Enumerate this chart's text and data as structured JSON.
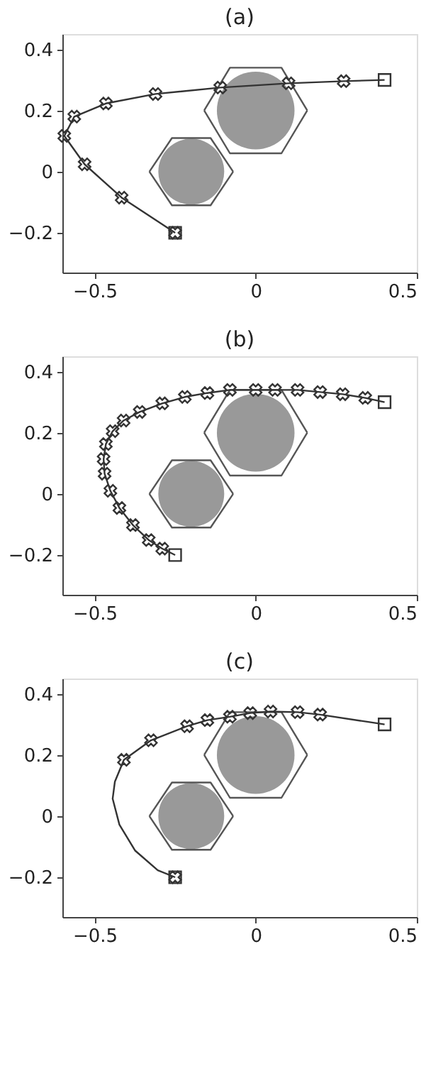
{
  "chart_data": [
    {
      "type": "line",
      "title": "(a)",
      "xlim": [
        -0.6,
        0.5
      ],
      "ylim": [
        -0.33,
        0.45
      ],
      "grid": false,
      "xticks": [
        -0.5,
        0,
        0.5
      ],
      "yticks": [
        -0.2,
        0,
        0.2,
        0.4
      ],
      "series": [
        {
          "type": "bubble",
          "color": "#999999",
          "x": [
            0,
            -0.2
          ],
          "values": [
            0.2,
            0
          ],
          "sizes": [
            1,
            0.72
          ]
        },
        {
          "color": "#555555",
          "marker": "none",
          "x": [
            -0.16,
            -0.08,
            0.08,
            0.16
          ],
          "values": [
            0.2,
            0.34,
            0.34,
            0.2
          ]
        },
        {
          "color": "#555555",
          "marker": "none",
          "x": [
            -0.16,
            -0.08,
            0.08,
            0.16
          ],
          "values": [
            0.2,
            0.06,
            0.06,
            0.2
          ]
        },
        {
          "color": "#555555",
          "marker": "none",
          "x": [
            -0.33,
            -0.26,
            -0.14,
            -0.07
          ],
          "values": [
            0,
            0.11,
            0.11,
            0
          ]
        },
        {
          "color": "#555555",
          "marker": "none",
          "x": [
            -0.33,
            -0.26,
            -0.14,
            -0.07
          ],
          "values": [
            0,
            -0.11,
            -0.11,
            0
          ]
        },
        {
          "color": "#333333",
          "marker": "none",
          "x": [
            0.4,
            0.273,
            0.102,
            -0.11,
            -0.311,
            -0.465,
            -0.563,
            -0.594,
            -0.531,
            -0.416,
            -0.25
          ],
          "values": [
            0.3,
            0.296,
            0.289,
            0.275,
            0.254,
            0.223,
            0.18,
            0.117,
            0.024,
            -0.085,
            -0.2
          ]
        },
        {
          "type": "scatter",
          "color": "#333333",
          "marker": "cross",
          "x": [
            0.273,
            0.102,
            -0.11,
            -0.311,
            -0.465,
            -0.563,
            -0.594,
            -0.531,
            -0.416,
            -0.25
          ],
          "values": [
            0.296,
            0.289,
            0.275,
            0.254,
            0.223,
            0.18,
            0.117,
            0.024,
            -0.085,
            -0.2
          ]
        },
        {
          "type": "scatter",
          "color": "#333333",
          "marker": "square",
          "x": [
            0.4,
            -0.25
          ],
          "values": [
            0.3,
            -0.2
          ]
        }
      ]
    },
    {
      "type": "line",
      "title": "(b)",
      "xlim": [
        -0.6,
        0.5
      ],
      "ylim": [
        -0.33,
        0.45
      ],
      "grid": false,
      "xticks": [
        -0.5,
        0,
        0.5
      ],
      "yticks": [
        -0.2,
        0,
        0.2,
        0.4
      ],
      "series": [
        {
          "type": "bubble",
          "color": "#999999",
          "x": [
            0,
            -0.2
          ],
          "values": [
            0.2,
            0
          ],
          "sizes": [
            1,
            0.72
          ]
        },
        {
          "color": "#555555",
          "marker": "none",
          "x": [
            -0.16,
            -0.08,
            0.08,
            0.16
          ],
          "values": [
            0.2,
            0.34,
            0.34,
            0.2
          ]
        },
        {
          "color": "#555555",
          "marker": "none",
          "x": [
            -0.16,
            -0.08,
            0.08,
            0.16
          ],
          "values": [
            0.2,
            0.06,
            0.06,
            0.2
          ]
        },
        {
          "color": "#555555",
          "marker": "none",
          "x": [
            -0.33,
            -0.26,
            -0.14,
            -0.07
          ],
          "values": [
            0,
            0.11,
            0.11,
            0
          ]
        },
        {
          "color": "#555555",
          "marker": "none",
          "x": [
            -0.33,
            -0.26,
            -0.14,
            -0.07
          ],
          "values": [
            0,
            -0.11,
            -0.11,
            0
          ]
        },
        {
          "color": "#333333",
          "marker": "none",
          "x": [
            0.4,
            0.34,
            0.27,
            0.2,
            0.13,
            0.06,
            0,
            -0.08,
            -0.15,
            -0.22,
            -0.29,
            -0.36,
            -0.41,
            -0.444,
            -0.465,
            -0.472,
            -0.469,
            -0.451,
            -0.423,
            -0.381,
            -0.332,
            -0.29,
            -0.25
          ],
          "values": [
            0.3,
            0.314,
            0.326,
            0.333,
            0.34,
            0.34,
            0.34,
            0.34,
            0.33,
            0.317,
            0.296,
            0.268,
            0.24,
            0.205,
            0.163,
            0.114,
            0.066,
            0.01,
            -0.046,
            -0.102,
            -0.151,
            -0.179,
            -0.2
          ]
        },
        {
          "type": "scatter",
          "color": "#333333",
          "marker": "cross",
          "x": [
            0.34,
            0.27,
            0.2,
            0.13,
            0.06,
            0,
            -0.08,
            -0.15,
            -0.22,
            -0.29,
            -0.36,
            -0.41,
            -0.444,
            -0.465,
            -0.472,
            -0.469,
            -0.451,
            -0.423,
            -0.381,
            -0.332,
            -0.29
          ],
          "values": [
            0.314,
            0.326,
            0.333,
            0.34,
            0.34,
            0.34,
            0.34,
            0.33,
            0.317,
            0.296,
            0.268,
            0.24,
            0.205,
            0.163,
            0.114,
            0.066,
            0.01,
            -0.046,
            -0.102,
            -0.151,
            -0.179
          ]
        },
        {
          "type": "scatter",
          "color": "#333333",
          "marker": "square",
          "x": [
            0.4,
            -0.25
          ],
          "values": [
            0.3,
            -0.2
          ]
        }
      ]
    },
    {
      "type": "line",
      "title": "(c)",
      "xlim": [
        -0.6,
        0.5
      ],
      "ylim": [
        -0.33,
        0.45
      ],
      "grid": false,
      "xticks": [
        -0.5,
        0,
        0.5
      ],
      "yticks": [
        -0.2,
        0,
        0.2,
        0.4
      ],
      "series": [
        {
          "type": "bubble",
          "color": "#999999",
          "x": [
            0,
            -0.2
          ],
          "values": [
            0.2,
            0
          ],
          "sizes": [
            1,
            0.72
          ]
        },
        {
          "color": "#555555",
          "marker": "none",
          "x": [
            -0.16,
            -0.08,
            0.08,
            0.16
          ],
          "values": [
            0.2,
            0.34,
            0.34,
            0.2
          ]
        },
        {
          "color": "#555555",
          "marker": "none",
          "x": [
            -0.16,
            -0.08,
            0.08,
            0.16
          ],
          "values": [
            0.2,
            0.06,
            0.06,
            0.2
          ]
        },
        {
          "color": "#555555",
          "marker": "none",
          "x": [
            -0.33,
            -0.26,
            -0.14,
            -0.07
          ],
          "values": [
            0,
            0.11,
            0.11,
            0
          ]
        },
        {
          "color": "#555555",
          "marker": "none",
          "x": [
            -0.33,
            -0.26,
            -0.14,
            -0.07
          ],
          "values": [
            0,
            -0.11,
            -0.11,
            0
          ]
        },
        {
          "color": "#333333",
          "marker": "none",
          "x": [
            0.4,
            0.2,
            0.13,
            0.046,
            -0.017,
            -0.08,
            -0.15,
            -0.213,
            -0.325,
            -0.409,
            -0.437,
            -0.444,
            -0.423,
            -0.374,
            -0.304,
            -0.25
          ],
          "values": [
            0.3,
            0.332,
            0.34,
            0.342,
            0.337,
            0.325,
            0.314,
            0.294,
            0.248,
            0.184,
            0.113,
            0.057,
            -0.028,
            -0.113,
            -0.177,
            -0.2
          ]
        },
        {
          "type": "scatter",
          "color": "#333333",
          "marker": "cross",
          "x": [
            0.2,
            0.13,
            0.046,
            -0.017,
            -0.08,
            -0.15,
            -0.213,
            -0.325,
            -0.409,
            -0.25
          ],
          "values": [
            0.332,
            0.34,
            0.342,
            0.337,
            0.325,
            0.314,
            0.294,
            0.248,
            0.184,
            -0.2
          ]
        },
        {
          "type": "scatter",
          "color": "#333333",
          "marker": "square",
          "x": [
            0.4,
            -0.25
          ],
          "values": [
            0.3,
            -0.2
          ]
        }
      ]
    }
  ]
}
